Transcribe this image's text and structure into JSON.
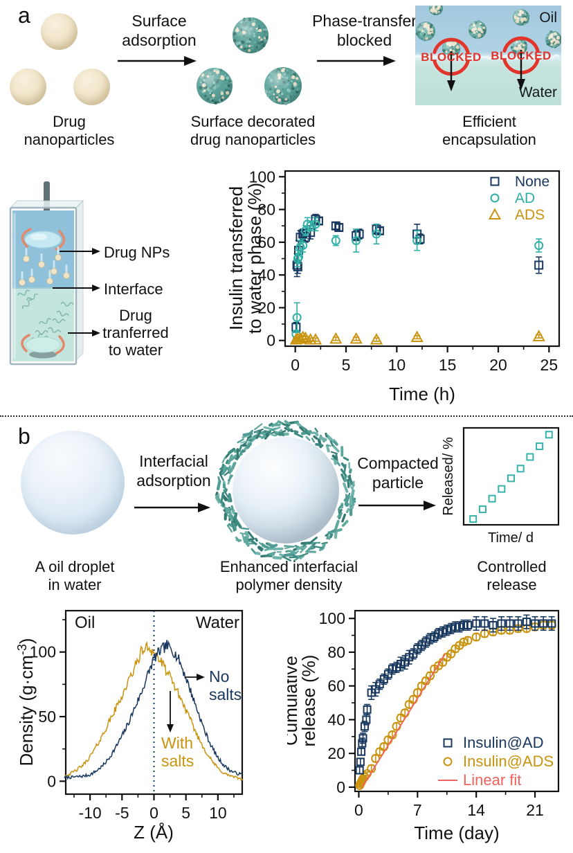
{
  "colors": {
    "navy": "#17375E",
    "teal": "#2FB0A5",
    "gold": "#C9930E",
    "red": "#E3342C",
    "fit_red": "#F0625C",
    "sphere_teal": "#4F9B92"
  },
  "panel_a": {
    "label": "a",
    "caption1": [
      "Drug",
      "nanoparticles"
    ],
    "arrow1": [
      "Surface",
      "adsorption"
    ],
    "caption2": [
      "Surface decorated",
      "drug nanoparticles"
    ],
    "arrow2": [
      "Phase-transfer",
      "blocked"
    ],
    "caption3": [
      "Efficient",
      "encapsulation"
    ],
    "encapsulation": {
      "oil": "Oil",
      "water": "Water",
      "blocked": "BLOCKED"
    },
    "vial_labels": {
      "drug_nps": "Drug NPs",
      "interface": "Interface",
      "transferred": [
        "Drug",
        "tranferred",
        "to water"
      ]
    }
  },
  "panel_b": {
    "label": "b",
    "caption1": [
      "A oil droplet",
      "in water"
    ],
    "arrow1": [
      "Interfacial",
      "adsorption"
    ],
    "caption2": [
      "Enhanced interfacial",
      "polymer density"
    ],
    "arrow2": [
      "Compacted",
      "particle"
    ],
    "caption3": [
      "Controlled",
      "release"
    ]
  },
  "chart_data": [
    {
      "id": "insulin_transfer",
      "type": "scatter",
      "xlabel": "Time (h)",
      "ylabel": "Insulin transferred to water phase (%)",
      "ylabel_lines": [
        "Insulin transferred",
        "to water phase (%)"
      ],
      "xlim": [
        -1,
        26
      ],
      "ylim": [
        -3.5,
        103.5
      ],
      "xticks": [
        0,
        5,
        10,
        15,
        20,
        25
      ],
      "yticks": [
        0,
        20,
        40,
        60,
        80,
        100
      ],
      "legend": [
        "None",
        "AD",
        "ADS"
      ],
      "legend_position": "top-right",
      "grid": false,
      "series": [
        {
          "name": "None",
          "marker": "square",
          "color": "navy",
          "points": [
            [
              0.08,
              8,
              3
            ],
            [
              0.17,
              46,
              7
            ],
            [
              0.25,
              45,
              4
            ],
            [
              0.33,
              55,
              6
            ],
            [
              0.5,
              63,
              4
            ],
            [
              0.75,
              65,
              3
            ],
            [
              1,
              63,
              3
            ],
            [
              1.5,
              66,
              4
            ],
            [
              2,
              74,
              3
            ],
            [
              2.3,
              73,
              2
            ],
            [
              4,
              70,
              2
            ],
            [
              4.3,
              69,
              2
            ],
            [
              6,
              64,
              3
            ],
            [
              6.3,
              65,
              3
            ],
            [
              8,
              68,
              3
            ],
            [
              8.3,
              67,
              2
            ],
            [
              12,
              65,
              6
            ],
            [
              12.3,
              62,
              3
            ],
            [
              24,
              46,
              5
            ]
          ]
        },
        {
          "name": "AD",
          "marker": "circle",
          "color": "teal",
          "points": [
            [
              0.08,
              4,
              2
            ],
            [
              0.17,
              14,
              9
            ],
            [
              0.25,
              50,
              5
            ],
            [
              0.33,
              51,
              4
            ],
            [
              0.5,
              57,
              4
            ],
            [
              0.75,
              58,
              4
            ],
            [
              1,
              67,
              3
            ],
            [
              1.2,
              71,
              4
            ],
            [
              1.5,
              70,
              3
            ],
            [
              2,
              71,
              4
            ],
            [
              4,
              61,
              3
            ],
            [
              6,
              61,
              7
            ],
            [
              8,
              65,
              6
            ],
            [
              12,
              61,
              6
            ],
            [
              24,
              58,
              4
            ]
          ]
        },
        {
          "name": "ADS",
          "marker": "triangle",
          "color": "gold",
          "points": [
            [
              0.08,
              0.5,
              1
            ],
            [
              0.25,
              1,
              1
            ],
            [
              0.5,
              1,
              1
            ],
            [
              0.75,
              2,
              1
            ],
            [
              1,
              1.5,
              1
            ],
            [
              1.5,
              0.5,
              1
            ],
            [
              2,
              0.5,
              1
            ],
            [
              4,
              1,
              1
            ],
            [
              6,
              1,
              1
            ],
            [
              8,
              0.5,
              1
            ],
            [
              12,
              2,
              1
            ],
            [
              24,
              2.5,
              1
            ]
          ]
        }
      ]
    },
    {
      "id": "density_profile",
      "type": "line",
      "xlabel": "Z (Å)",
      "ylabel": "Density (g·cm⁻³)",
      "ylabel_parts": [
        "Density (g·cm",
        "-3",
        ")"
      ],
      "xlim": [
        -13.8,
        13.8
      ],
      "ylim": [
        -10,
        132
      ],
      "xticks": [
        -10,
        -5,
        0,
        5,
        10
      ],
      "yticks": [
        0,
        50,
        100
      ],
      "vline_x": 0,
      "region_labels": {
        "left": "Oil",
        "right": "Water"
      },
      "annotations": {
        "no_salts": [
          "No",
          "salts"
        ],
        "with_salts": [
          "With",
          "salts"
        ]
      },
      "series": [
        {
          "name": "No salts",
          "color": "navy",
          "points": [
            [
              -14,
              3
            ],
            [
              -13,
              3
            ],
            [
              -12,
              3.5
            ],
            [
              -11,
              4
            ],
            [
              -10,
              5
            ],
            [
              -9,
              8
            ],
            [
              -8,
              12
            ],
            [
              -7,
              18
            ],
            [
              -6,
              26
            ],
            [
              -5,
              35
            ],
            [
              -4,
              45
            ],
            [
              -3,
              57
            ],
            [
              -2,
              68
            ],
            [
              -1,
              82
            ],
            [
              0,
              95
            ],
            [
              1,
              101
            ],
            [
              2,
              105
            ],
            [
              3,
              101
            ],
            [
              4,
              93
            ],
            [
              5,
              80
            ],
            [
              6,
              66
            ],
            [
              7,
              52
            ],
            [
              8,
              38
            ],
            [
              9,
              27
            ],
            [
              10,
              18
            ],
            [
              11,
              12
            ],
            [
              12,
              8
            ],
            [
              13,
              6
            ],
            [
              14,
              5
            ]
          ]
        },
        {
          "name": "With salts",
          "color": "gold",
          "points": [
            [
              -14,
              4
            ],
            [
              -13,
              6
            ],
            [
              -12,
              9
            ],
            [
              -11,
              13
            ],
            [
              -10,
              19
            ],
            [
              -9,
              27
            ],
            [
              -8,
              36
            ],
            [
              -7,
              46
            ],
            [
              -6,
              56
            ],
            [
              -5,
              66
            ],
            [
              -4,
              77
            ],
            [
              -3,
              88
            ],
            [
              -2,
              100
            ],
            [
              -1,
              104
            ],
            [
              0,
              100
            ],
            [
              1,
              93
            ],
            [
              2,
              85
            ],
            [
              3,
              76
            ],
            [
              4,
              66
            ],
            [
              5,
              55
            ],
            [
              6,
              44
            ],
            [
              7,
              33
            ],
            [
              8,
              24
            ],
            [
              9,
              16
            ],
            [
              10,
              10
            ],
            [
              11,
              6
            ],
            [
              12,
              4
            ],
            [
              13,
              2.5
            ],
            [
              14,
              1.5
            ]
          ]
        }
      ]
    },
    {
      "id": "cumulative_release",
      "type": "scatter",
      "xlabel": "Time (day)",
      "ylabel": "Cumulative release (%)",
      "ylabel_lines": [
        "Cumulative",
        "release (%)"
      ],
      "xlim": [
        -0.45,
        23.8
      ],
      "ylim": [
        -2.5,
        104.6
      ],
      "xticks": [
        0,
        7,
        14,
        21
      ],
      "yticks": [
        0,
        20,
        40,
        60,
        80,
        100
      ],
      "legend": [
        "Insulin@AD",
        "Insulin@ADS",
        "Linear fit"
      ],
      "legend_position": "bottom-right",
      "grid": false,
      "linear_fit": {
        "x1": 0.4,
        "y1": 0,
        "x2": 10.3,
        "y2": 79,
        "color": "fit_red"
      },
      "series": [
        {
          "name": "Insulin@AD",
          "marker": "square",
          "color": "navy",
          "points": [
            [
              0.1,
              10,
              2
            ],
            [
              0.2,
              15,
              2
            ],
            [
              0.3,
              21,
              2
            ],
            [
              0.4,
              26,
              3
            ],
            [
              0.5,
              29,
              3
            ],
            [
              0.7,
              36,
              3
            ],
            [
              0.9,
              40,
              3
            ],
            [
              1,
              46,
              3
            ],
            [
              1.5,
              56,
              4
            ],
            [
              2,
              58,
              4
            ],
            [
              2.5,
              61,
              3
            ],
            [
              3,
              64,
              3
            ],
            [
              3.5,
              67,
              3
            ],
            [
              4,
              70,
              3
            ],
            [
              4.5,
              71,
              3
            ],
            [
              5,
              73,
              4
            ],
            [
              5.5,
              74,
              4
            ],
            [
              6,
              77,
              4
            ],
            [
              6.5,
              79,
              3
            ],
            [
              7,
              82,
              3
            ],
            [
              7.5,
              84,
              3
            ],
            [
              8,
              86,
              3
            ],
            [
              8.5,
              88,
              3
            ],
            [
              9,
              89,
              3
            ],
            [
              9.5,
              91,
              3
            ],
            [
              10,
              92,
              3
            ],
            [
              10.5,
              93,
              3
            ],
            [
              11,
              94,
              3
            ],
            [
              11.5,
              95,
              3
            ],
            [
              12,
              95,
              3
            ],
            [
              12.5,
              96,
              3
            ],
            [
              13,
              96,
              3
            ],
            [
              14,
              97,
              4
            ],
            [
              15,
              97,
              4
            ],
            [
              16,
              96,
              4
            ],
            [
              17,
              97,
              4
            ],
            [
              18,
              97,
              4
            ],
            [
              19,
              97,
              4
            ],
            [
              20,
              98,
              4
            ],
            [
              21,
              97,
              4
            ],
            [
              22,
              97,
              4
            ],
            [
              23,
              97,
              4
            ]
          ]
        },
        {
          "name": "Insulin@ADS",
          "marker": "circle",
          "color": "gold",
          "points": [
            [
              0.1,
              1,
              1
            ],
            [
              0.2,
              2,
              1
            ],
            [
              0.3,
              3,
              1
            ],
            [
              0.4,
              4,
              1
            ],
            [
              0.5,
              5,
              1
            ],
            [
              0.7,
              6,
              1
            ],
            [
              1,
              8,
              1
            ],
            [
              1.5,
              11,
              2
            ],
            [
              2,
              17,
              2
            ],
            [
              2.5,
              21,
              2
            ],
            [
              3,
              24,
              2
            ],
            [
              3.5,
              28,
              2
            ],
            [
              4,
              31,
              2
            ],
            [
              4.5,
              36,
              2
            ],
            [
              5,
              41,
              2
            ],
            [
              5.5,
              44,
              2
            ],
            [
              6,
              49,
              2
            ],
            [
              6.5,
              52,
              2
            ],
            [
              7,
              56,
              2
            ],
            [
              7.5,
              60,
              2
            ],
            [
              8,
              63,
              2
            ],
            [
              8.5,
              66,
              2
            ],
            [
              9,
              70,
              2
            ],
            [
              9.5,
              72,
              2
            ],
            [
              10,
              74,
              2
            ],
            [
              10.5,
              77,
              2
            ],
            [
              11,
              79,
              2
            ],
            [
              11.5,
              82,
              2
            ],
            [
              12,
              84,
              2
            ],
            [
              12.5,
              86,
              2
            ],
            [
              13,
              87,
              2
            ],
            [
              14,
              89,
              2
            ],
            [
              15,
              91,
              2
            ],
            [
              16,
              92,
              2
            ],
            [
              17,
              93,
              2
            ],
            [
              18,
              93,
              2
            ],
            [
              19,
              94,
              2
            ],
            [
              20,
              94,
              2
            ],
            [
              21,
              95,
              2
            ],
            [
              22,
              96,
              2
            ],
            [
              23,
              96,
              2
            ]
          ]
        }
      ]
    },
    {
      "id": "controlled_release_inset",
      "type": "scatter",
      "xlabel": "Time/ d",
      "ylabel": "Released/ %",
      "xlim": [
        0,
        10
      ],
      "ylim": [
        0,
        100
      ],
      "marker": "square",
      "color": "teal",
      "points": [
        [
          1,
          6
        ],
        [
          2,
          16
        ],
        [
          3,
          27
        ],
        [
          4,
          37
        ],
        [
          5,
          48
        ],
        [
          6,
          58
        ],
        [
          7,
          70
        ],
        [
          8,
          81
        ],
        [
          9,
          93
        ]
      ]
    }
  ]
}
